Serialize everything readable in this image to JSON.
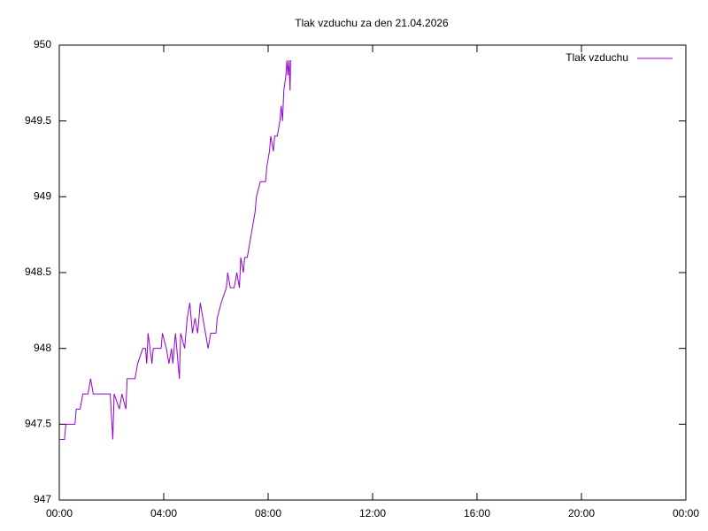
{
  "chart_data": {
    "type": "line",
    "title": "Tlak vzduchu za den 21.04.2026",
    "x": [
      0,
      0.2,
      0.25,
      0.6,
      0.65,
      0.8,
      0.9,
      1.1,
      1.2,
      1.3,
      1.95,
      2.05,
      2.1,
      2.3,
      2.4,
      2.55,
      2.6,
      2.9,
      3.0,
      3.2,
      3.3,
      3.35,
      3.4,
      3.55,
      3.6,
      3.9,
      3.95,
      4.1,
      4.2,
      4.3,
      4.35,
      4.45,
      4.6,
      4.65,
      4.8,
      4.9,
      5.0,
      5.1,
      5.2,
      5.3,
      5.4,
      5.5,
      5.6,
      5.7,
      5.8,
      6.0,
      6.05,
      6.2,
      6.4,
      6.45,
      6.55,
      6.7,
      6.8,
      6.9,
      6.95,
      7.05,
      7.1,
      7.2,
      7.3,
      7.4,
      7.5,
      7.55,
      7.7,
      7.9,
      7.95,
      8.05,
      8.1,
      8.2,
      8.25,
      8.35,
      8.45,
      8.5,
      8.55,
      8.6,
      8.68,
      8.72,
      8.76,
      8.8,
      8.84,
      8.86
    ],
    "series": [
      {
        "name": "Tlak vzduchu",
        "color": "#9400d3",
        "values": [
          947.4,
          947.4,
          947.5,
          947.5,
          947.6,
          947.6,
          947.7,
          947.7,
          947.8,
          947.7,
          947.7,
          947.4,
          947.7,
          947.6,
          947.7,
          947.6,
          947.8,
          947.8,
          947.9,
          948.0,
          948.0,
          947.9,
          948.1,
          947.9,
          948.0,
          948.0,
          948.1,
          948.0,
          947.9,
          948.0,
          947.9,
          948.1,
          947.8,
          948.1,
          948.0,
          948.2,
          948.3,
          948.1,
          948.2,
          948.1,
          948.3,
          948.2,
          948.1,
          948.0,
          948.1,
          948.1,
          948.2,
          948.3,
          948.4,
          948.5,
          948.4,
          948.4,
          948.5,
          948.4,
          948.6,
          948.5,
          948.6,
          948.6,
          948.7,
          948.8,
          948.9,
          949.0,
          949.1,
          949.1,
          949.2,
          949.3,
          949.4,
          949.3,
          949.4,
          949.4,
          949.5,
          949.6,
          949.5,
          949.7,
          949.8,
          949.9,
          949.8,
          949.9,
          949.7,
          949.9
        ]
      }
    ],
    "xlim": [
      0,
      24
    ],
    "xticks": [
      {
        "value": 0,
        "label": "00:00"
      },
      {
        "value": 4,
        "label": "04:00"
      },
      {
        "value": 8,
        "label": "08:00"
      },
      {
        "value": 12,
        "label": "12:00"
      },
      {
        "value": 16,
        "label": "16:00"
      },
      {
        "value": 20,
        "label": "20:00"
      },
      {
        "value": 24,
        "label": "00:00"
      }
    ],
    "ylim": [
      947,
      950
    ],
    "yticks": [
      947,
      947.5,
      948,
      948.5,
      949,
      949.5,
      950
    ],
    "grid": false,
    "legend": "top-right"
  }
}
